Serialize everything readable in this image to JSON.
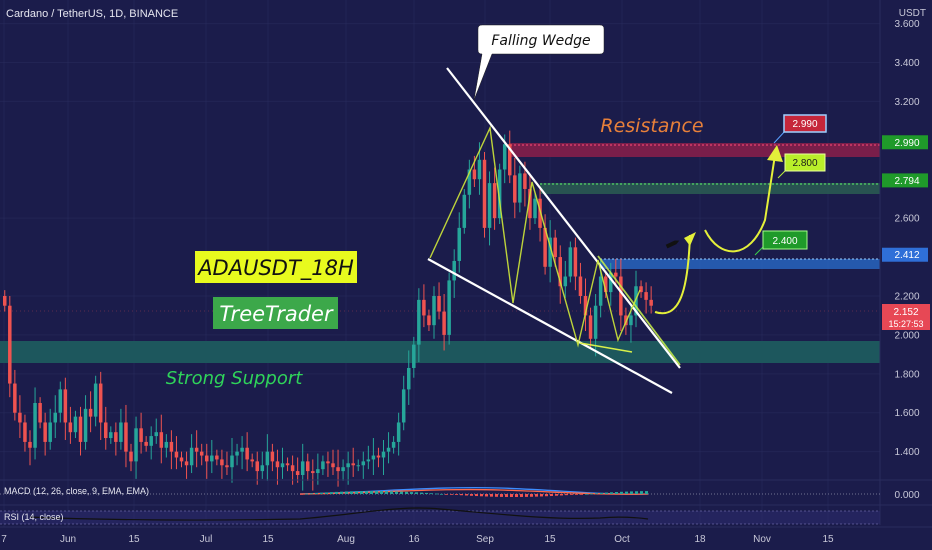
{
  "header": {
    "symbol_line": "Cardano / TetherUS, 1D, BINANCE",
    "currency": "USDT"
  },
  "indicators": {
    "macd_label": "MACD (12, 26, close, 9, EMA, EMA)",
    "rsi_label": "RSI (14, close)"
  },
  "colors": {
    "background": "#1b1c4b",
    "up_candle": "#26a69a",
    "down_candle": "#ef5350",
    "support_zone": "#1d5b5e",
    "resistance_zone": "#8a1f4a",
    "mid_zone": "#2a5a52",
    "target_zone": "#2760b8",
    "wedge_line": "#ffffff",
    "projection": "#e4f03a",
    "resistance_text": "#e8803a",
    "support_text": "#2fd35a"
  },
  "price_axis": {
    "ticks": [
      "3.600",
      "3.400",
      "3.200",
      "2.990",
      "2.794",
      "2.600",
      "2.412",
      "2.200",
      "2.152",
      "2.000",
      "1.800",
      "1.600",
      "1.400",
      "0.000"
    ],
    "current_price": "2.152",
    "countdown": "15:27:53"
  },
  "time_axis": {
    "ticks": [
      "7",
      "Jun",
      "15",
      "Jul",
      "15",
      "Aug",
      "16",
      "Sep",
      "15",
      "Oct",
      "18",
      "Nov",
      "15"
    ]
  },
  "annotations": {
    "title_badge": "ADAUSDT_18H",
    "author_badge": "TreeTrader",
    "pattern_callout": "Falling Wedge",
    "resistance_label": "Resistance",
    "support_label": "Strong Support",
    "target_1": "2.400",
    "target_2": "2.800",
    "target_3": "2.990"
  },
  "chart_data": {
    "type": "candlestick",
    "title": "Cardano / TetherUS, 1D, BINANCE",
    "ylabel": "USDT",
    "ylim": [
      1.28,
      3.68
    ],
    "levels": {
      "resistance_top": 2.99,
      "resistance_mid": 2.794,
      "target_zone": 2.412,
      "support_low": 1.9,
      "support_high": 2.0,
      "current": 2.152
    },
    "closes": [
      2.15,
      1.75,
      1.6,
      1.55,
      1.45,
      1.42,
      1.65,
      1.55,
      1.45,
      1.55,
      1.6,
      1.72,
      1.55,
      1.5,
      1.58,
      1.45,
      1.62,
      1.58,
      1.75,
      1.55,
      1.47,
      1.5,
      1.45,
      1.55,
      1.4,
      1.35,
      1.52,
      1.45,
      1.43,
      1.48,
      1.5,
      1.42,
      1.45,
      1.4,
      1.37,
      1.35,
      1.33,
      1.42,
      1.4,
      1.38,
      1.35,
      1.38,
      1.36,
      1.33,
      1.32,
      1.38,
      1.4,
      1.42,
      1.36,
      1.35,
      1.3,
      1.33,
      1.4,
      1.35,
      1.32,
      1.34,
      1.33,
      1.3,
      1.28,
      1.35,
      1.3,
      1.29,
      1.31,
      1.35,
      1.34,
      1.32,
      1.3,
      1.32,
      1.34,
      1.33,
      1.33,
      1.35,
      1.36,
      1.38,
      1.37,
      1.4,
      1.42,
      1.45,
      1.55,
      1.72,
      1.83,
      1.95,
      2.18,
      2.1,
      2.05,
      2.2,
      2.12,
      2.0,
      2.28,
      2.38,
      2.55,
      2.72,
      2.85,
      2.8,
      2.9,
      2.55,
      2.78,
      2.6,
      2.85,
      2.98,
      2.82,
      2.68,
      2.83,
      2.75,
      2.6,
      2.7,
      2.55,
      2.35,
      2.5,
      2.4,
      2.25,
      2.3,
      2.45,
      2.3,
      2.2,
      2.1,
      1.98,
      2.15,
      2.3,
      2.22,
      2.32,
      2.3,
      2.1,
      2.05,
      2.1,
      2.25,
      2.22,
      2.18,
      2.15
    ],
    "resistance_level": 2.99,
    "support_level": 2.0
  }
}
